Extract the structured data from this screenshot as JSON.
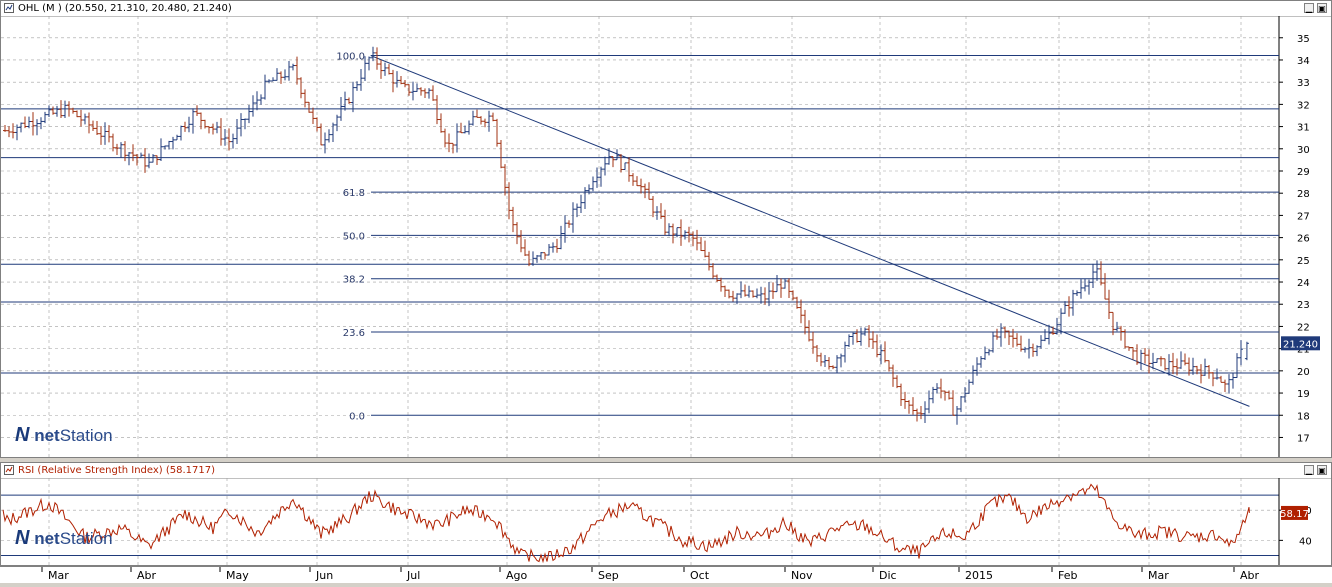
{
  "price_panel": {
    "title": "OHL (M ) (20.550, 21.310, 20.480, 21.240)",
    "last_value_label": "21.240",
    "logo_prefix": "net",
    "logo_suffix": "Station",
    "min_button": "▁",
    "close_button": "▣"
  },
  "rsi_panel": {
    "title": "RSI (Relative Strength Index) (58.1717)",
    "last_value_label": "58.17",
    "logo_prefix": "net",
    "logo_suffix": "Station",
    "min_button": "▁",
    "close_button": "▣"
  },
  "x_axis": {
    "months": [
      "Mar",
      "Abr",
      "May",
      "Jun",
      "Jul",
      "Ago",
      "Sep",
      "Oct",
      "Nov",
      "Dic",
      "2015",
      "Feb",
      "Mar",
      "Abr"
    ]
  },
  "colors": {
    "up_bar": "#1f3a7a",
    "down_bar": "#a03010",
    "rsi_line": "#b02000",
    "grid": "#a0a0a0",
    "level_line": "#1f3a7a",
    "rsi_badge": "#b02000",
    "price_badge": "#1f3a7a"
  },
  "chart_data": [
    {
      "type": "ohlc",
      "title": "OHL (M ) (20.550, 21.310, 20.480, 21.240)",
      "ylim": [
        16.3,
        35.8
      ],
      "y_ticks": [
        17,
        18,
        19,
        20,
        21,
        22,
        23,
        24,
        25,
        26,
        27,
        28,
        29,
        30,
        31,
        32,
        33,
        34,
        35
      ],
      "x_tick_labels": [
        "Mar",
        "Abr",
        "May",
        "Jun",
        "Jul",
        "Ago",
        "Sep",
        "Oct",
        "Nov",
        "Dic",
        "2015",
        "Feb",
        "Mar",
        "Abr"
      ],
      "last": {
        "open": 20.55,
        "high": 21.31,
        "low": 20.48,
        "close": 21.24
      },
      "fibonacci_levels": [
        {
          "label": "100.0",
          "value": 34.2
        },
        {
          "label": "61.8",
          "value": 28.05
        },
        {
          "label": "50.0",
          "value": 26.1
        },
        {
          "label": "38.2",
          "value": 24.15
        },
        {
          "label": "23.6",
          "value": 21.75
        },
        {
          "label": "0.0",
          "value": 18.0
        }
      ],
      "horizontal_lines": [
        31.8,
        29.6,
        24.8,
        23.1,
        19.9
      ],
      "trendline": {
        "from": {
          "month_pos": 3.55,
          "value": 34.2
        },
        "to": {
          "month_pos": 13.25,
          "value": 18.4
        }
      },
      "anchor_prices": [
        [
          -0.5,
          30.8
        ],
        [
          0.2,
          31.8
        ],
        [
          0.7,
          30.3
        ],
        [
          1.1,
          29.3
        ],
        [
          1.6,
          31.6
        ],
        [
          2.0,
          30.3
        ],
        [
          2.4,
          32.9
        ],
        [
          2.7,
          33.6
        ],
        [
          3.0,
          30.3
        ],
        [
          3.3,
          32.2
        ],
        [
          3.55,
          34.2
        ],
        [
          3.9,
          32.7
        ],
        [
          4.2,
          32.6
        ],
        [
          4.4,
          30.1
        ],
        [
          4.7,
          31.3
        ],
        [
          4.9,
          31.5
        ],
        [
          5.1,
          26.7
        ],
        [
          5.3,
          24.8
        ],
        [
          5.6,
          25.7
        ],
        [
          6.0,
          28.7
        ],
        [
          6.2,
          29.8
        ],
        [
          6.5,
          28.5
        ],
        [
          6.8,
          26.4
        ],
        [
          7.1,
          26.0
        ],
        [
          7.3,
          24.6
        ],
        [
          7.5,
          23.5
        ],
        [
          7.9,
          23.3
        ],
        [
          8.1,
          24.0
        ],
        [
          8.4,
          21.5
        ],
        [
          8.6,
          20.0
        ],
        [
          8.8,
          21.3
        ],
        [
          9.0,
          21.7
        ],
        [
          9.2,
          20.6
        ],
        [
          9.45,
          18.5
        ],
        [
          9.6,
          18.0
        ],
        [
          9.8,
          19.4
        ],
        [
          10.0,
          18.1
        ],
        [
          10.3,
          20.8
        ],
        [
          10.5,
          21.7
        ],
        [
          10.8,
          21.0
        ],
        [
          11.0,
          21.4
        ],
        [
          11.3,
          23.3
        ],
        [
          11.55,
          24.6
        ],
        [
          11.75,
          22.0
        ],
        [
          12.0,
          20.6
        ],
        [
          12.3,
          20.3
        ],
        [
          12.6,
          20.2
        ],
        [
          12.9,
          19.8
        ],
        [
          13.0,
          19.2
        ],
        [
          13.2,
          21.24
        ]
      ]
    },
    {
      "type": "line",
      "title": "RSI (Relative Strength Index) (58.1717)",
      "ylim": [
        25,
        80
      ],
      "y_ticks": [
        40,
        60
      ],
      "reference_lines": [
        30,
        70
      ],
      "last": 58.17,
      "anchor_values": [
        [
          -0.5,
          52
        ],
        [
          0.0,
          65
        ],
        [
          0.4,
          42
        ],
        [
          0.8,
          48
        ],
        [
          1.1,
          36
        ],
        [
          1.5,
          58
        ],
        [
          1.8,
          48
        ],
        [
          2.0,
          60
        ],
        [
          2.3,
          45
        ],
        [
          2.7,
          68
        ],
        [
          3.0,
          44
        ],
        [
          3.3,
          55
        ],
        [
          3.55,
          70
        ],
        [
          3.9,
          58
        ],
        [
          4.3,
          50
        ],
        [
          4.6,
          60
        ],
        [
          4.9,
          56
        ],
        [
          5.2,
          30
        ],
        [
          5.5,
          28
        ],
        [
          5.8,
          36
        ],
        [
          6.1,
          55
        ],
        [
          6.4,
          63
        ],
        [
          6.7,
          52
        ],
        [
          7.0,
          40
        ],
        [
          7.3,
          36
        ],
        [
          7.6,
          45
        ],
        [
          7.9,
          43
        ],
        [
          8.1,
          52
        ],
        [
          8.4,
          38
        ],
        [
          8.7,
          48
        ],
        [
          9.0,
          50
        ],
        [
          9.4,
          34
        ],
        [
          9.6,
          32
        ],
        [
          9.9,
          45
        ],
        [
          10.1,
          42
        ],
        [
          10.4,
          64
        ],
        [
          10.6,
          68
        ],
        [
          10.8,
          55
        ],
        [
          11.0,
          62
        ],
        [
          11.25,
          70
        ],
        [
          11.55,
          74
        ],
        [
          11.75,
          54
        ],
        [
          12.0,
          43
        ],
        [
          12.3,
          46
        ],
        [
          12.6,
          42
        ],
        [
          12.9,
          44
        ],
        [
          13.05,
          36
        ],
        [
          13.25,
          58.17
        ]
      ]
    }
  ]
}
